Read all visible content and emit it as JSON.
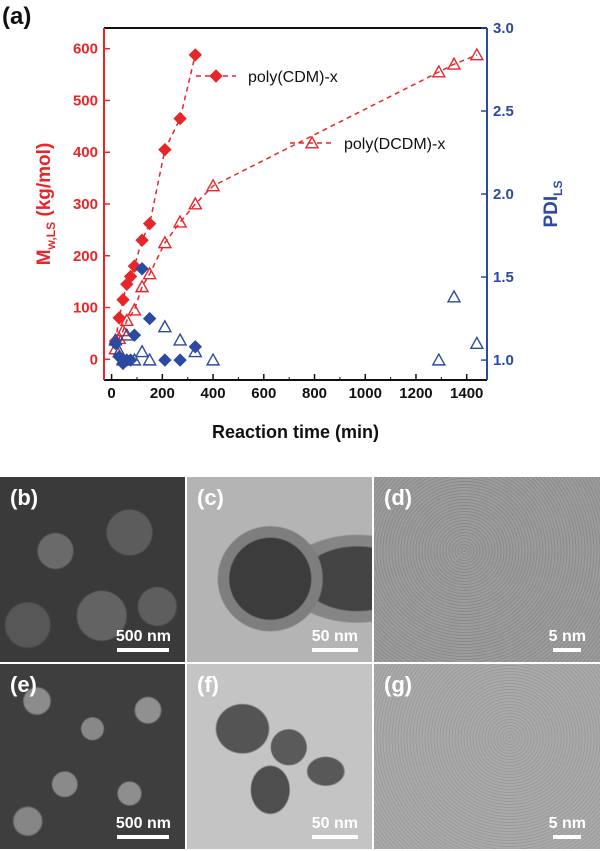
{
  "chart_data": {
    "type": "scatter",
    "panel_label": "(a)",
    "xlabel": "Reaction time (min)",
    "ylabel_left": "M",
    "ylabel_left_sub": "w,LS",
    "ylabel_left_unit": " (kg/mol)",
    "ylabel_right": "PDI",
    "ylabel_right_sub": "LS",
    "xlim": [
      -30,
      1480
    ],
    "ylim_left": [
      -40,
      640
    ],
    "ylim_right": [
      0.88,
      3.0
    ],
    "x_ticks": [
      "0",
      "200",
      "400",
      "600",
      "800",
      "1000",
      "1200",
      "1400"
    ],
    "y_left_ticks": [
      "0",
      "100",
      "200",
      "300",
      "400",
      "500",
      "600"
    ],
    "y_right_ticks": [
      "1.0",
      "1.5",
      "2.0",
      "2.5",
      "3.0"
    ],
    "legend_placement": "upper-middle",
    "colors": {
      "red": "#e8262a",
      "blue": "#2b4aa0",
      "axis_left": "#e8262a",
      "axis_right": "#2b4aa0"
    },
    "series": [
      {
        "name": "poly(CDM)-x",
        "axis": "left",
        "marker": "filled-diamond",
        "color": "#e8262a",
        "x": [
          15,
          30,
          45,
          60,
          75,
          90,
          120,
          150,
          210,
          270,
          330
        ],
        "y": [
          35,
          80,
          115,
          145,
          160,
          180,
          230,
          262,
          405,
          465,
          588
        ]
      },
      {
        "name": "poly(DCDM)-x",
        "axis": "left",
        "marker": "open-triangle",
        "color": "#e8262a",
        "x": [
          15,
          30,
          45,
          60,
          90,
          120,
          150,
          210,
          270,
          330,
          400,
          1290,
          1350,
          1440
        ],
        "y": [
          20,
          40,
          55,
          75,
          95,
          140,
          165,
          225,
          265,
          300,
          335,
          555,
          570,
          588
        ]
      },
      {
        "name": "PDI poly(CDM)-x",
        "axis": "right",
        "marker": "filled-diamond",
        "color": "#2b4aa0",
        "x": [
          15,
          30,
          45,
          60,
          75,
          90,
          120,
          150,
          210,
          270,
          330
        ],
        "y": [
          1.1,
          1.02,
          0.98,
          1.0,
          1.0,
          1.15,
          1.55,
          1.25,
          1.0,
          1.0,
          1.08
        ]
      },
      {
        "name": "PDI poly(DCDM)-x",
        "axis": "right",
        "marker": "open-triangle",
        "color": "#2b4aa0",
        "x": [
          15,
          30,
          45,
          60,
          90,
          120,
          150,
          210,
          270,
          330,
          400,
          1290,
          1350,
          1440
        ],
        "y": [
          1.12,
          1.05,
          1.0,
          1.15,
          1.0,
          1.05,
          1.0,
          1.2,
          1.12,
          1.05,
          1.0,
          1.0,
          1.38,
          1.1
        ]
      }
    ]
  },
  "micrographs": [
    {
      "label": "(b)",
      "scale": "500 nm"
    },
    {
      "label": "(c)",
      "scale": "50 nm"
    },
    {
      "label": "(d)",
      "scale": "5 nm"
    },
    {
      "label": "(e)",
      "scale": "500 nm"
    },
    {
      "label": "(f)",
      "scale": "50 nm"
    },
    {
      "label": "(g)",
      "scale": "5 nm"
    }
  ]
}
